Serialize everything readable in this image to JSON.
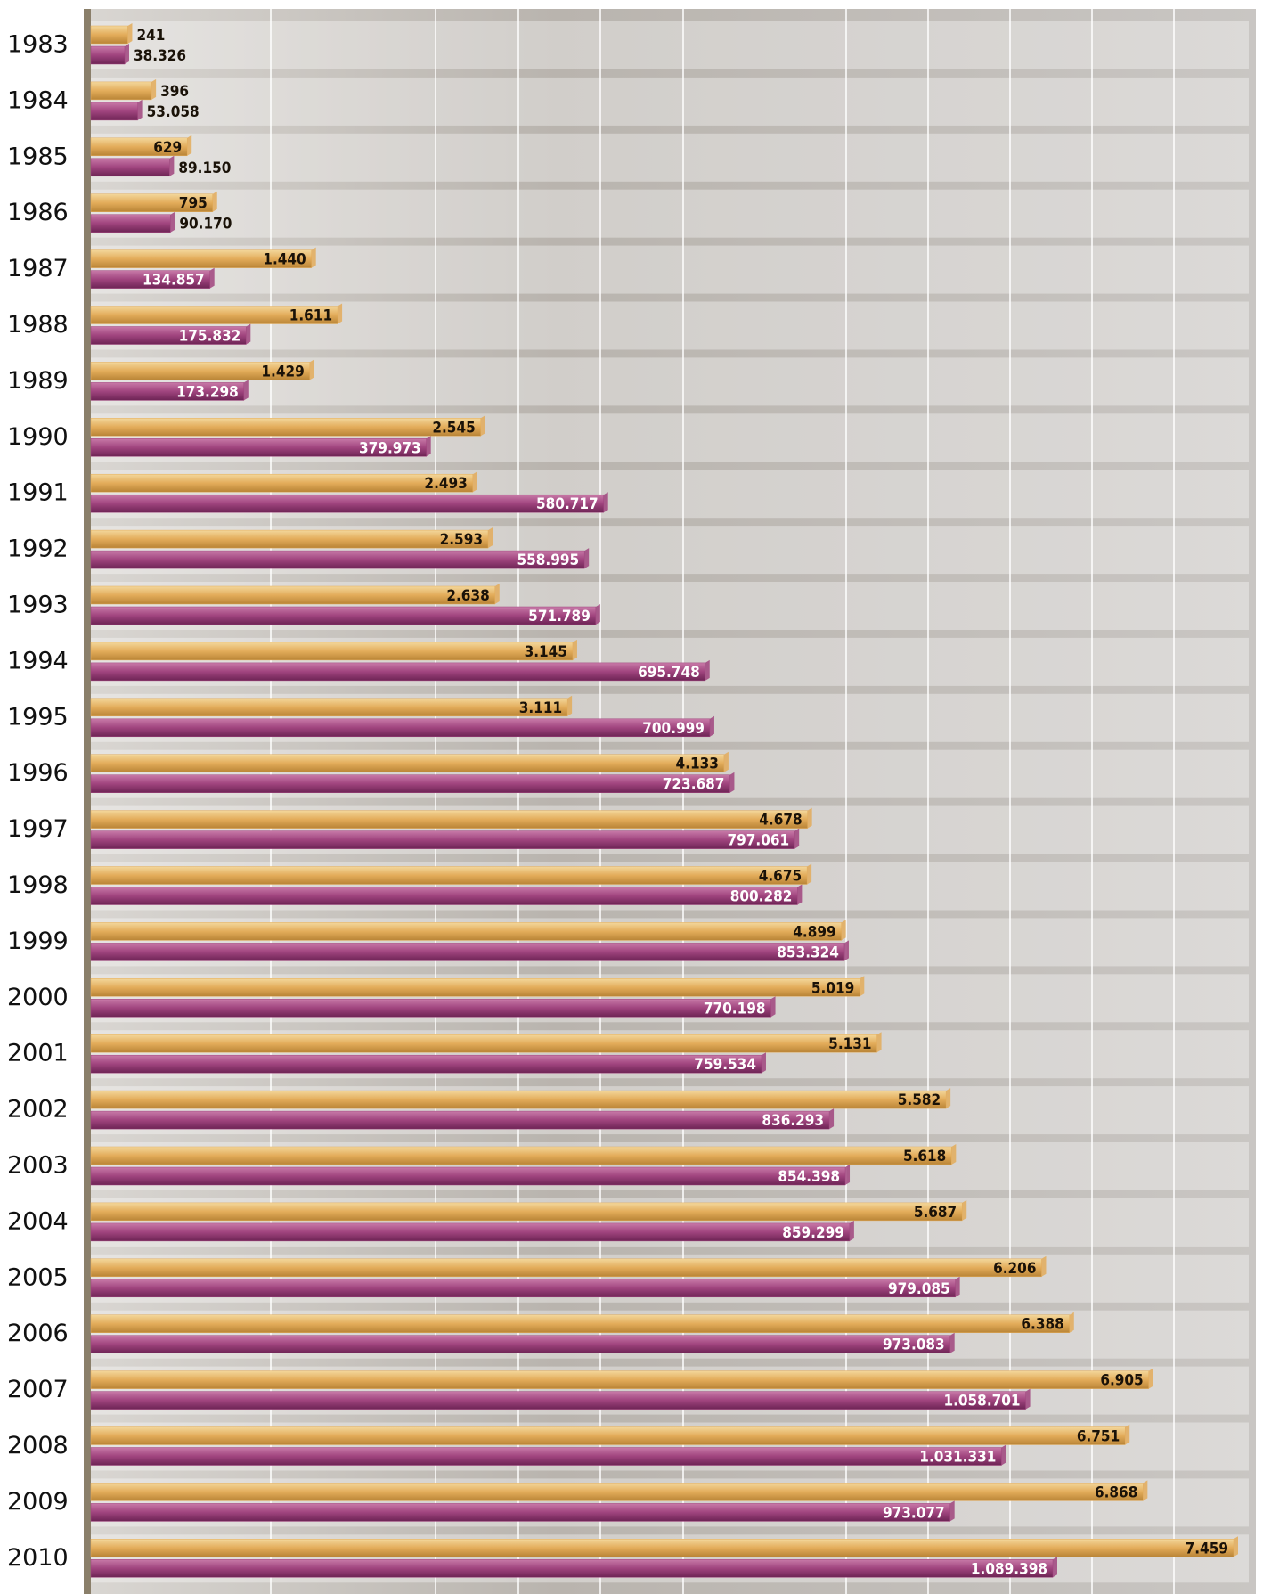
{
  "chart_data": {
    "type": "bar",
    "categories": [
      "1983",
      "1984",
      "1985",
      "1986",
      "1987",
      "1988",
      "1989",
      "1990",
      "1991",
      "1992",
      "1993",
      "1994",
      "1995",
      "1996",
      "1997",
      "1998",
      "1999",
      "2000",
      "2001",
      "2002",
      "2003",
      "2004",
      "2005",
      "2006",
      "2007",
      "2008",
      "2009",
      "2010"
    ],
    "series": [
      {
        "color": "#e3ac5a",
        "values": [
          241,
          396,
          629,
          795,
          1440,
          1611,
          1429,
          2545,
          2493,
          2593,
          2638,
          3145,
          3111,
          4133,
          4678,
          4675,
          4899,
          5019,
          5131,
          5582,
          5618,
          5687,
          6206,
          6388,
          6905,
          6751,
          6868,
          7459
        ],
        "value_labels": [
          "241",
          "396",
          "629",
          "795",
          "1.440",
          "1.611",
          "1.429",
          "2.545",
          "2.493",
          "2.593",
          "2.638",
          "3.145",
          "3.111",
          "4.133",
          "4.678",
          "4.675",
          "4.899",
          "5.019",
          "5.131",
          "5.582",
          "5.618",
          "5.687",
          "6.206",
          "6.388",
          "6.905",
          "6.751",
          "6.868",
          "7.459"
        ]
      },
      {
        "color": "#a0447e",
        "values": [
          38326,
          53058,
          89150,
          90170,
          134857,
          175832,
          173298,
          379973,
          580717,
          558995,
          571789,
          695748,
          700999,
          723687,
          797061,
          800282,
          853324,
          770198,
          759534,
          836293,
          854398,
          859299,
          979085,
          973083,
          1058701,
          1031331,
          973077,
          1089398
        ],
        "value_labels": [
          "38.326",
          "53.058",
          "89.150",
          "90.170",
          "134.857",
          "175.832",
          "173.298",
          "379.973",
          "580.717",
          "558.995",
          "571.789",
          "695.748",
          "700.999",
          "723.687",
          "797.061",
          "800.282",
          "853.324",
          "770.198",
          "759.534",
          "836.293",
          "854.398",
          "859.299",
          "979.085",
          "973.083",
          "1.058.701",
          "1.031.331",
          "973.077",
          "1.089.398"
        ]
      }
    ]
  }
}
